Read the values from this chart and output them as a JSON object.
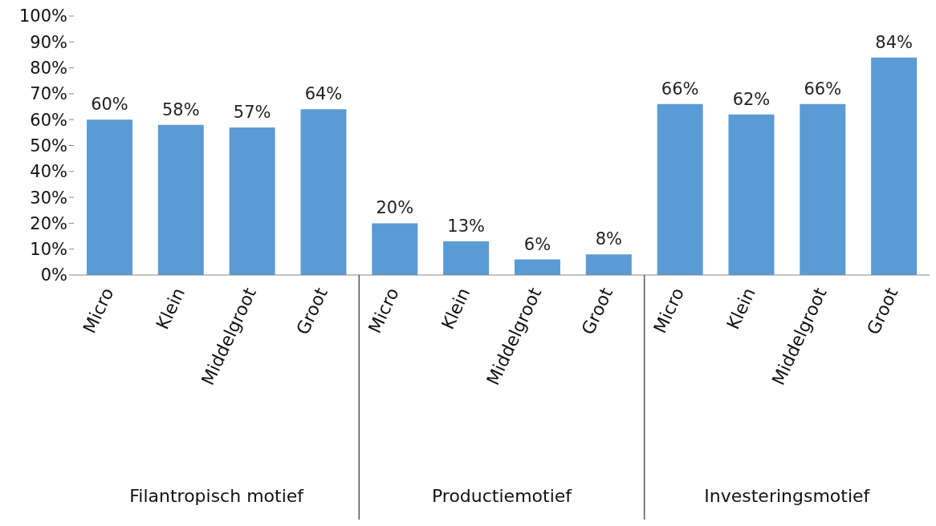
{
  "chart_data": {
    "type": "bar",
    "categories": [
      "Micro",
      "Klein",
      "Middelgroot",
      "Groot",
      "Micro",
      "Klein",
      "Middelgroot",
      "Groot",
      "Micro",
      "Klein",
      "Middelgroot",
      "Groot"
    ],
    "values": [
      60,
      58,
      57,
      64,
      20,
      13,
      6,
      8,
      66,
      62,
      66,
      84
    ],
    "value_labels": [
      "60%",
      "58%",
      "57%",
      "64%",
      "20%",
      "13%",
      "6%",
      "8%",
      "66%",
      "62%",
      "66%",
      "84%"
    ],
    "color": "#5b9bd5",
    "ylim": [
      0,
      100
    ],
    "yticks": [
      {
        "value": 0,
        "label": "0%"
      },
      {
        "value": 10,
        "label": "10%"
      },
      {
        "value": 20,
        "label": "20%"
      },
      {
        "value": 30,
        "label": "30%"
      },
      {
        "value": 40,
        "label": "40%"
      },
      {
        "value": 50,
        "label": "50%"
      },
      {
        "value": 60,
        "label": "60%"
      },
      {
        "value": 70,
        "label": "70%"
      },
      {
        "value": 80,
        "label": "80%"
      },
      {
        "value": 90,
        "label": "90%"
      },
      {
        "value": 100,
        "label": "100%"
      }
    ],
    "annotations": [
      "Filantropisch motief",
      "Productiemotief",
      "Investeringsmotief"
    ],
    "grid": false
  }
}
